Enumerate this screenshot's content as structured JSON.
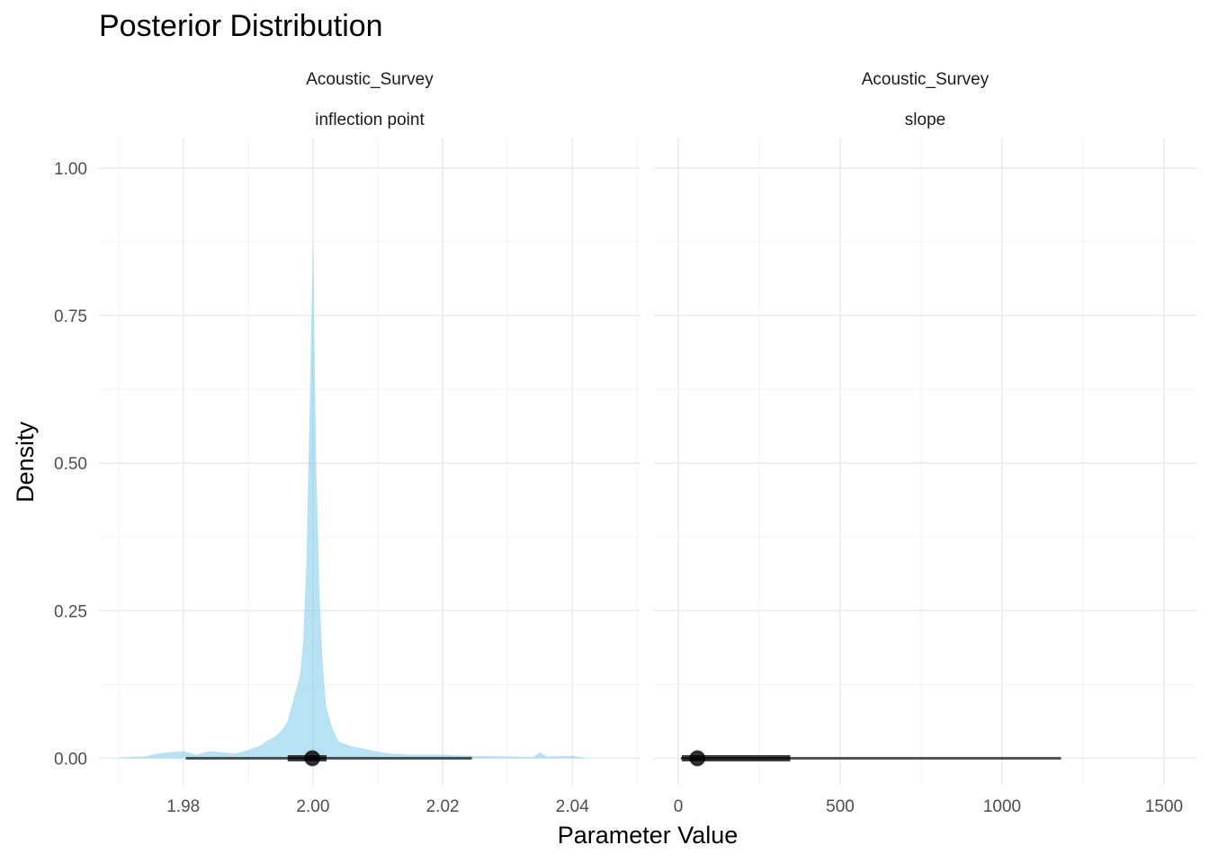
{
  "chart_data": {
    "type": "area",
    "title": "Posterior Distribution",
    "xlabel": "Parameter Value",
    "ylabel": "Density",
    "grid": true,
    "fill_color": "#87CEEB",
    "interval_color": "#000000",
    "panels": [
      {
        "strip": [
          "Acoustic_Survey",
          "inflection point"
        ],
        "xlim": [
          1.967,
          2.0505
        ],
        "ylim": [
          -0.045,
          1.05
        ],
        "x_ticks": [
          1.98,
          2.0,
          2.02,
          2.04
        ],
        "x_tick_labels": [
          "1.98",
          "2.00",
          "2.02",
          "2.04"
        ],
        "y_ticks": [
          0,
          0.25,
          0.5,
          0.75,
          1
        ],
        "y_tick_labels": [
          "0.00",
          "0.25",
          "0.50",
          "0.75",
          "1.00"
        ],
        "density": {
          "x": [
            1.97,
            1.974,
            1.976,
            1.978,
            1.98,
            1.982,
            1.984,
            1.986,
            1.988,
            1.99,
            1.992,
            1.993,
            1.994,
            1.995,
            1.996,
            1.997,
            1.998,
            1.9985,
            1.999,
            1.9995,
            2.0,
            2.0005,
            2.001,
            2.0015,
            2.002,
            2.003,
            2.004,
            2.005,
            2.006,
            2.008,
            2.01,
            2.012,
            2.015,
            2.02,
            2.025,
            2.03,
            2.034,
            2.035,
            2.036,
            2.04,
            2.042
          ],
          "y": [
            0.001,
            0.003,
            0.008,
            0.01,
            0.012,
            0.006,
            0.012,
            0.01,
            0.008,
            0.014,
            0.022,
            0.03,
            0.036,
            0.045,
            0.06,
            0.1,
            0.14,
            0.2,
            0.34,
            0.6,
            0.88,
            0.5,
            0.28,
            0.16,
            0.09,
            0.05,
            0.028,
            0.024,
            0.02,
            0.016,
            0.011,
            0.008,
            0.006,
            0.006,
            0.004,
            0.003,
            0.002,
            0.01,
            0.003,
            0.004,
            0.001
          ]
        },
        "point": 1.9999,
        "interval_66": [
          1.9961,
          2.0021
        ],
        "interval_95": [
          1.9804,
          2.0245
        ]
      },
      {
        "strip": [
          "Acoustic_Survey",
          "slope"
        ],
        "xlim": [
          -75,
          1600
        ],
        "ylim": [
          -0.045,
          1.05
        ],
        "x_ticks": [
          0,
          500,
          1000,
          1500
        ],
        "x_tick_labels": [
          "0",
          "500",
          "1000",
          "1500"
        ],
        "y_ticks": [
          0,
          0.25,
          0.5,
          0.75,
          1
        ],
        "density": {
          "x": [],
          "y": []
        },
        "point": 59,
        "interval_66": [
          11,
          346
        ],
        "interval_95": [
          8,
          1182
        ]
      }
    ]
  }
}
